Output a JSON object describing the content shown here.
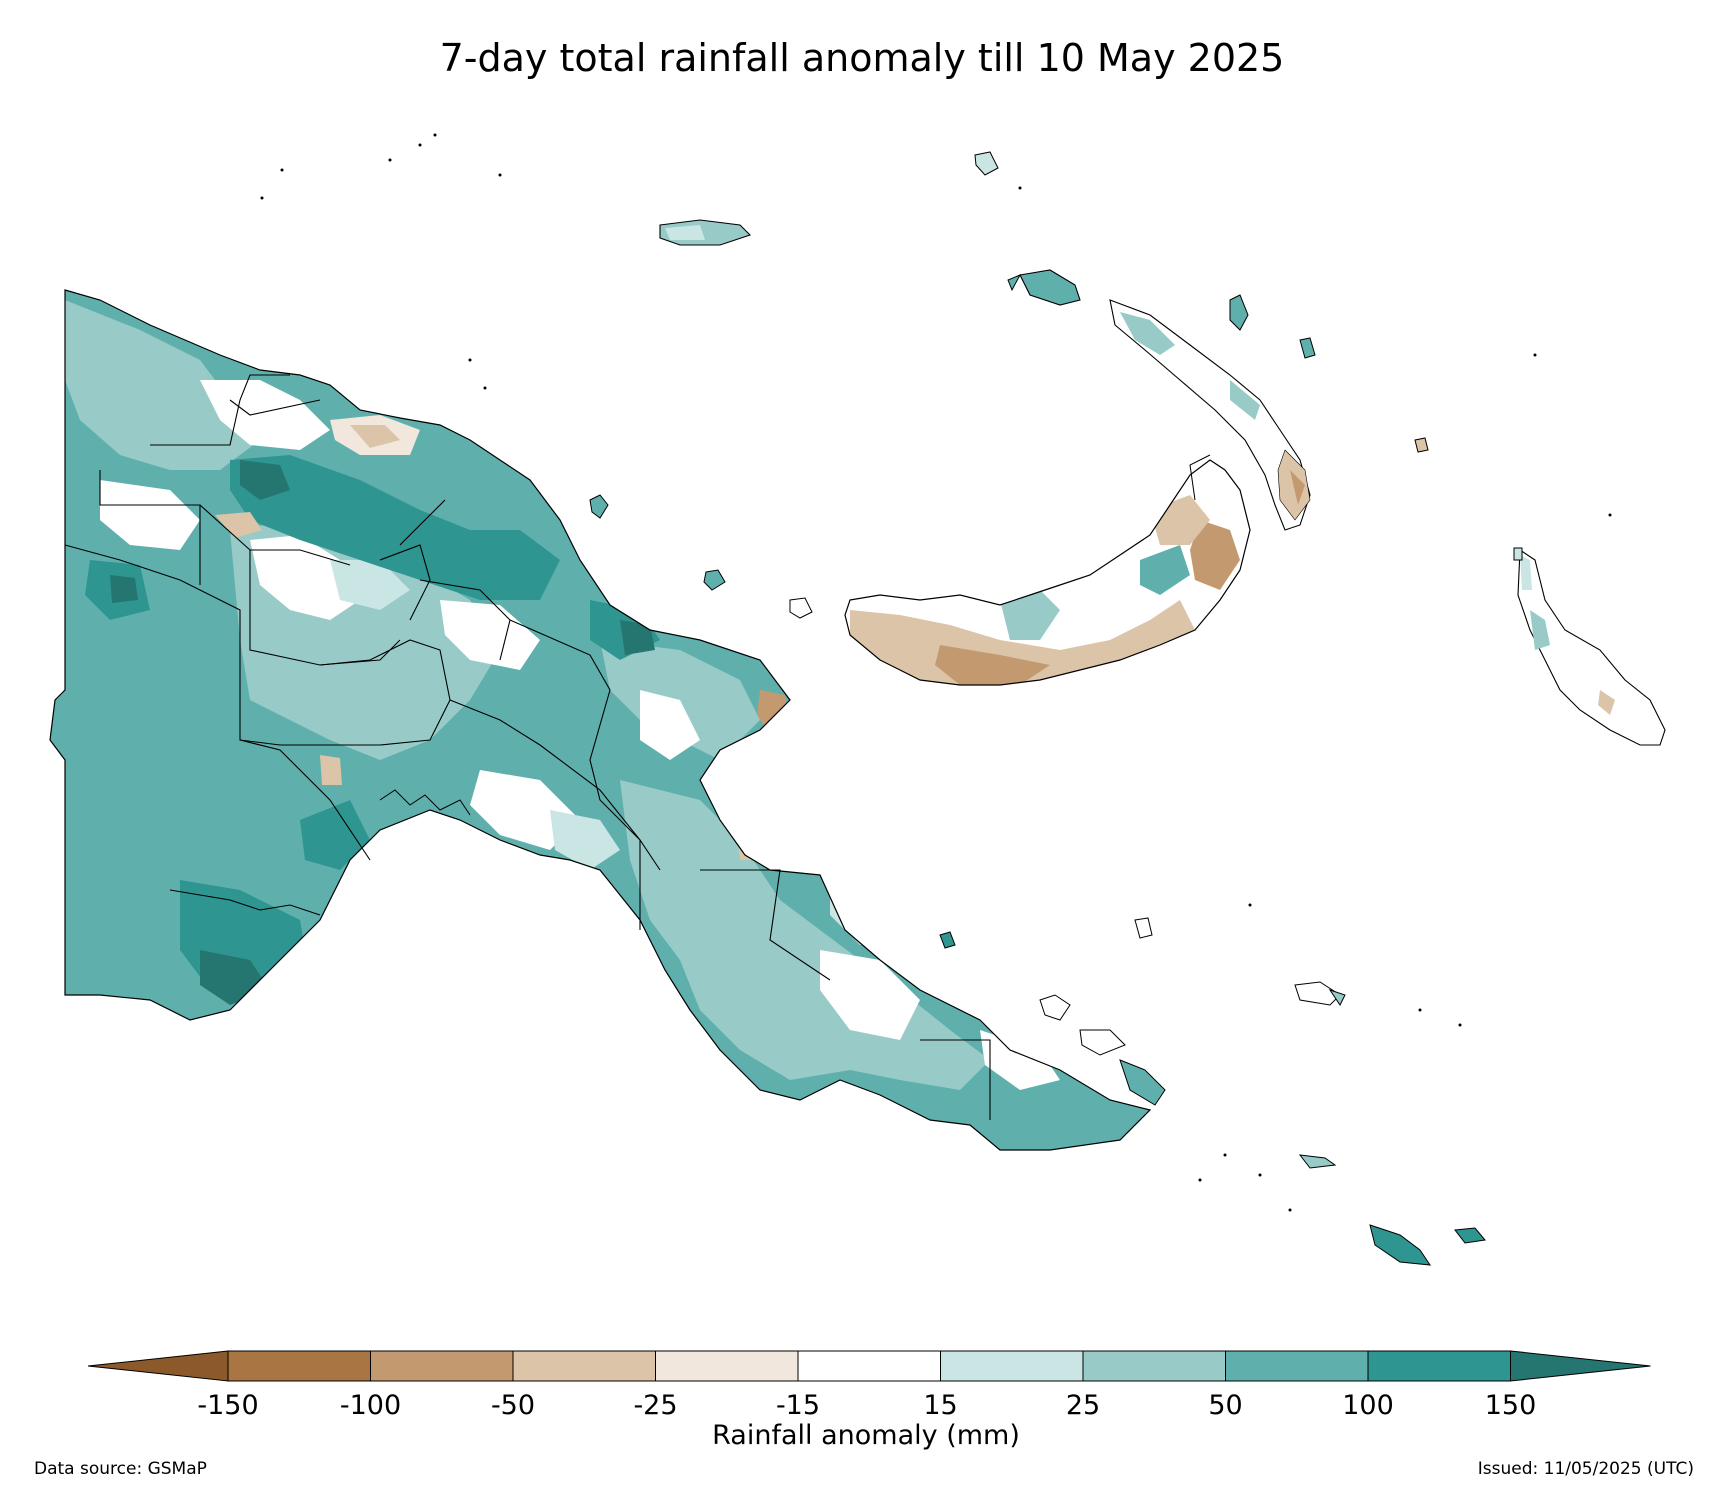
{
  "title": "7-day total rainfall anomaly till 10 May 2025",
  "colorbar": {
    "label": "Rainfall anomaly (mm)",
    "ticks": [
      "-150",
      "-100",
      "-50",
      "-25",
      "-15",
      "15",
      "25",
      "50",
      "100",
      "150"
    ],
    "bins": [
      {
        "color": "#8c5a2a",
        "range": "< -150"
      },
      {
        "color": "#a97542",
        "range": "-150 to -100"
      },
      {
        "color": "#c39a6f",
        "range": "-100 to -50"
      },
      {
        "color": "#dcc4a8",
        "range": "-50 to -25"
      },
      {
        "color": "#f2e7dc",
        "range": "-25 to -15"
      },
      {
        "color": "#ffffff",
        "range": "-15 to 15"
      },
      {
        "color": "#c9e5e4",
        "range": "15 to 25"
      },
      {
        "color": "#98cbc8",
        "range": "25 to 50"
      },
      {
        "color": "#5fb0ad",
        "range": "50 to 100"
      },
      {
        "color": "#2e9590",
        "range": "100 to 150"
      },
      {
        "color": "#257571",
        "range": "> 150"
      }
    ]
  },
  "footer": {
    "data_source": "Data source: GSMaP",
    "issued": "Issued: 11/05/2025 (UTC)"
  }
}
